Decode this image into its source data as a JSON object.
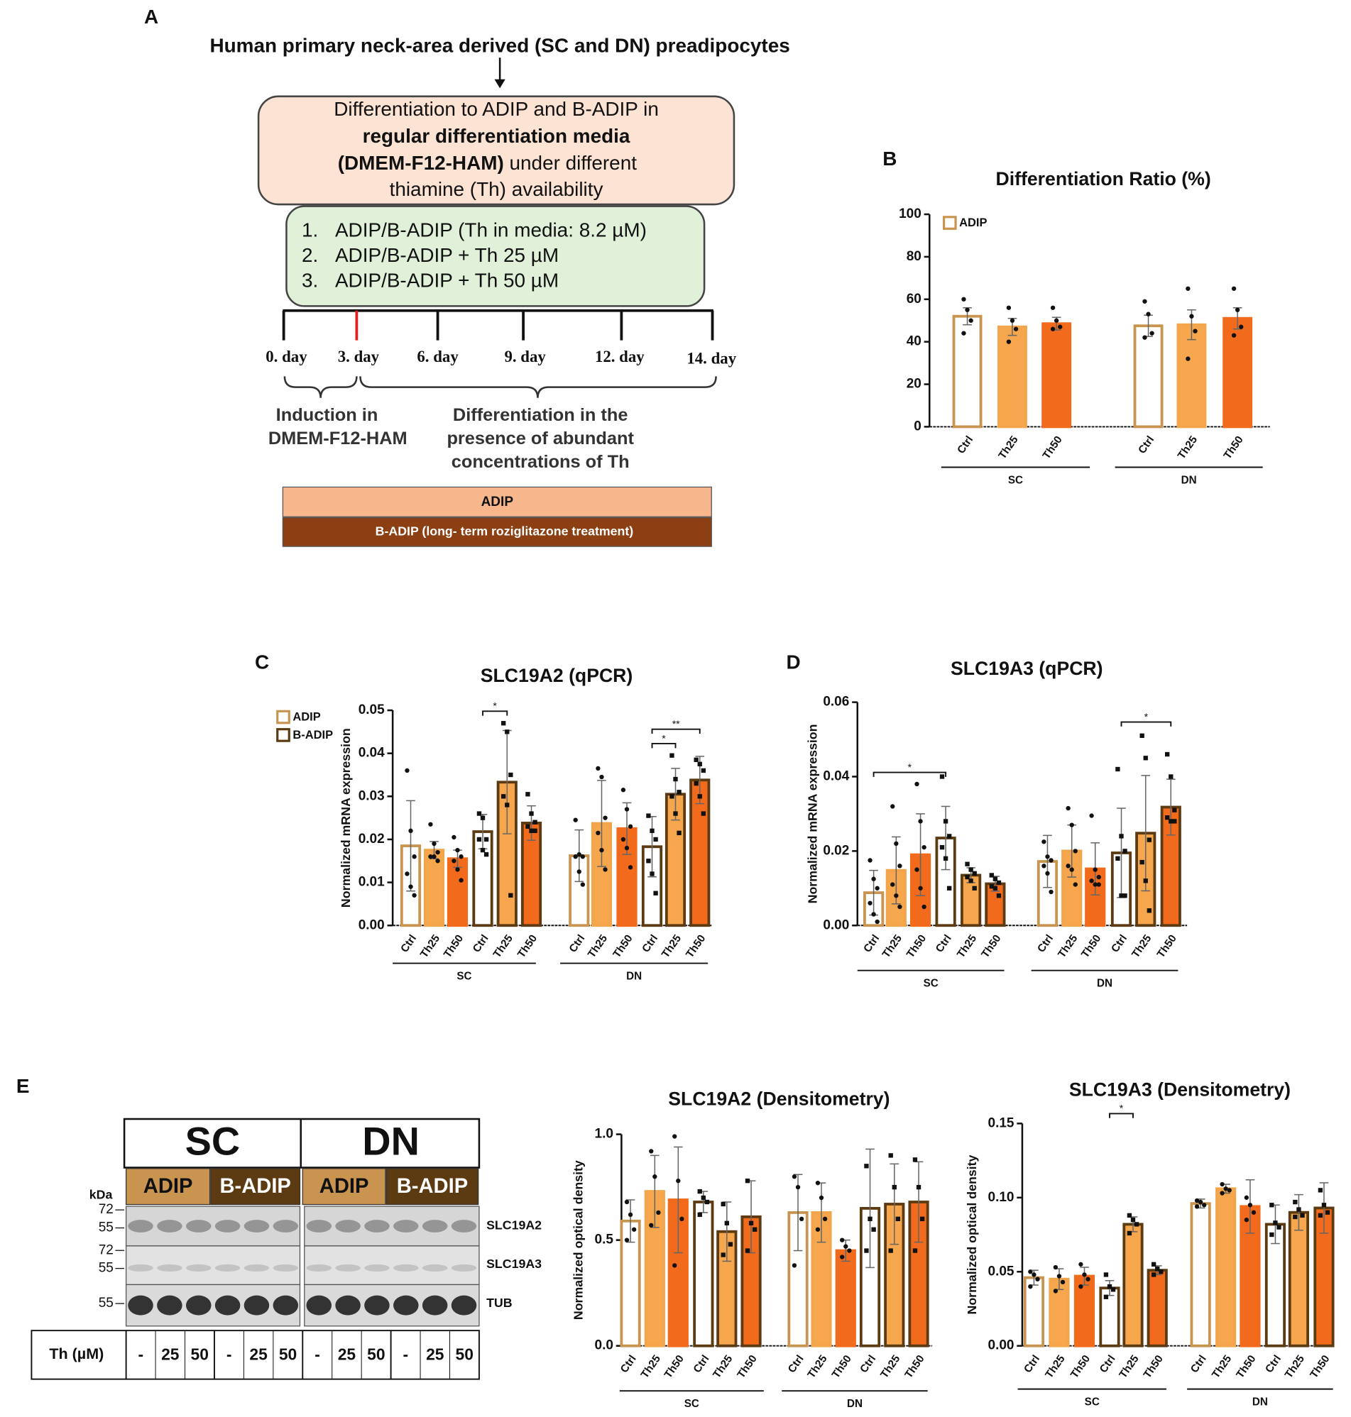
{
  "diagram": {
    "panel": "A",
    "title": "Human primary neck-area derived (SC and DN) preadipocytes",
    "box1": [
      [
        "Differentiation to ADIP and B-ADIP in"
      ],
      [
        "regular differentiation media"
      ],
      [
        "(DMEM-F12-HAM)",
        " under different"
      ],
      [
        "thiamine (Th) availability"
      ]
    ],
    "steps": [
      {
        "number": "1.",
        "text": "ADIP/B-ADIP (Th in media: 8.2 µM)"
      },
      {
        "number": "2.",
        "text": "ADIP/B-ADIP + Th 25 µM"
      },
      {
        "number": "3.",
        "text": "ADIP/B-ADIP + Th 50 µM"
      }
    ],
    "days": [
      "0. day",
      "3. day",
      "6. day",
      "9. day",
      "12. day",
      "14. day"
    ],
    "induction": [
      "Induction in",
      "DMEM-F12-HAM"
    ],
    "differentiation": [
      "Differentiation in the",
      "presence of abundant",
      "concentrations of Th"
    ],
    "bars": [
      "ADIP",
      "B-ADIP (long- term roziglitazone treatment)"
    ]
  },
  "blot": {
    "panel": "E",
    "groups": [
      "SC",
      "DN"
    ],
    "subgroups": [
      "ADIP",
      "B-ADIP",
      "ADIP",
      "B-ADIP"
    ],
    "kda_title": "kDa",
    "markers": [
      72,
      55,
      72,
      55,
      55
    ],
    "bands": [
      "SLC19A2",
      "SLC19A3",
      "TUB"
    ],
    "th_label": "Th (µM)",
    "lanes": [
      "-",
      25,
      50,
      "-",
      25,
      50,
      "-",
      25,
      50,
      "-",
      25,
      50
    ]
  },
  "chart_data": [
    {
      "type": "bar",
      "panel": "B",
      "title": "Differentiation Ratio (%)",
      "categories": [
        "Ctrl",
        "Th25",
        "Th50",
        "Ctrl",
        "Th25",
        "Th50"
      ],
      "groups": [
        "SC",
        "DN"
      ],
      "values": [
        52,
        47,
        48.5,
        47.5,
        48,
        51
      ],
      "errors": [
        4,
        4,
        3,
        5,
        7,
        5
      ],
      "points": [
        [
          60,
          55,
          50,
          44
        ],
        [
          56,
          50,
          46,
          40
        ],
        [
          56,
          50,
          47,
          46
        ],
        [
          59,
          53,
          44,
          42
        ],
        [
          65,
          52,
          45,
          32
        ],
        [
          65,
          55,
          47,
          43
        ]
      ],
      "point_shapes": [
        "circle",
        "circle",
        "circle",
        "circle",
        "circle",
        "circle"
      ],
      "colors": [
        "#c8944f",
        "#f2a54a",
        "#f26a1b",
        "#c8944f",
        "#f2a54a",
        "#f26a1b"
      ],
      "fills": [
        "#ffffff",
        "#f6a64c",
        "#f26a1b",
        "#ffffff",
        "#f6a64c",
        "#f26a1b"
      ],
      "legend": [
        {
          "name": "ADIP",
          "color": "#c8944f"
        }
      ],
      "ylim": [
        0,
        100
      ],
      "yticks": [
        0,
        20,
        40,
        60,
        80,
        100
      ],
      "significance": []
    },
    {
      "type": "bar",
      "panel": "C",
      "title": "SLC19A2 (qPCR)",
      "ylabel": "Normalized mRNA expression",
      "categories": [
        "Ctrl",
        "Th25",
        "Th50",
        "Ctrl",
        "Th25",
        "Th50",
        "Ctrl",
        "Th25",
        "Th50",
        "Ctrl",
        "Th25",
        "Th50"
      ],
      "groups": [
        "SC",
        "DN"
      ],
      "values": [
        0.0185,
        0.0175,
        0.0155,
        0.0218,
        0.0333,
        0.0238,
        0.0162,
        0.0237,
        0.0225,
        0.0183,
        0.0305,
        0.0338
      ],
      "errors": [
        0.0105,
        0.002,
        0.002,
        0.004,
        0.012,
        0.004,
        0.006,
        0.01,
        0.006,
        0.007,
        0.006,
        0.0055
      ],
      "points": [
        [
          0.036,
          0.022,
          0.016,
          0.012,
          0.009,
          0.007
        ],
        [
          0.0235,
          0.019,
          0.017,
          0.016,
          0.016,
          0.015
        ],
        [
          0.0205,
          0.0175,
          0.016,
          0.015,
          0.013,
          0.0105
        ],
        [
          0.026,
          0.025,
          0.02,
          0.02,
          0.0175,
          0.0165
        ],
        [
          0.047,
          0.045,
          0.035,
          0.03,
          0.028,
          0.007
        ],
        [
          0.0305,
          0.026,
          0.024,
          0.023,
          0.022,
          0.022
        ],
        [
          0.0245,
          0.0165,
          0.016,
          0.016,
          0.0125,
          0.0095
        ],
        [
          0.0365,
          0.0345,
          0.025,
          0.0215,
          0.0175,
          0.013
        ],
        [
          0.0315,
          0.027,
          0.023,
          0.02,
          0.018,
          0.0135
        ],
        [
          0.0255,
          0.022,
          0.02,
          0.015,
          0.012,
          0.0075
        ],
        [
          0.0395,
          0.034,
          0.031,
          0.03,
          0.026,
          0.0215
        ],
        [
          0.0385,
          0.0375,
          0.036,
          0.033,
          0.03,
          0.026
        ]
      ],
      "point_shapes": [
        "circle",
        "circle",
        "circle",
        "square",
        "square",
        "square",
        "circle",
        "circle",
        "circle",
        "square",
        "square",
        "square"
      ],
      "colors": [
        "#c8944f",
        "#f2a54a",
        "#f26a1b",
        "#5c3b12",
        "#5c3b12",
        "#5c3b12",
        "#c8944f",
        "#f2a54a",
        "#f26a1b",
        "#5c3b12",
        "#5c3b12",
        "#5c3b12"
      ],
      "fills": [
        "#ffffff",
        "#f6a64c",
        "#f26a1b",
        "#ffffff",
        "#f6a64c",
        "#f26a1b",
        "#ffffff",
        "#f6a64c",
        "#f26a1b",
        "#ffffff",
        "#f6a64c",
        "#f26a1b"
      ],
      "legend": [
        {
          "name": "ADIP",
          "color": "#c8944f"
        },
        {
          "name": "B-ADIP",
          "color": "#5c3b12"
        }
      ],
      "ylim": [
        0,
        0.05
      ],
      "yticks": [
        {
          "value": 0,
          "label": "0.00"
        },
        0.01,
        0.02,
        0.03,
        0.04,
        0.05
      ],
      "significance": [
        {
          "bars": [
            3,
            4
          ],
          "label": "*"
        },
        {
          "bars": [
            9,
            10
          ],
          "label": "*"
        },
        {
          "bars": [
            9,
            11
          ],
          "label": "**"
        }
      ]
    },
    {
      "type": "bar",
      "panel": "D",
      "title": "SLC19A3 (qPCR)",
      "ylabel": "Normalized mRNA expression",
      "categories": [
        "Ctrl",
        "Th25",
        "Th50",
        "Ctrl",
        "Th25",
        "Th50",
        "Ctrl",
        "Th25",
        "Th50",
        "Ctrl",
        "Th25",
        "Th50"
      ],
      "groups": [
        "SC",
        "DN"
      ],
      "values": [
        0.0088,
        0.0148,
        0.019,
        0.0235,
        0.0135,
        0.0112,
        0.0172,
        0.02,
        0.0152,
        0.0195,
        0.0248,
        0.0318
      ],
      "errors": [
        0.006,
        0.009,
        0.011,
        0.0085,
        0.002,
        0.002,
        0.007,
        0.007,
        0.007,
        0.012,
        0.0155,
        0.0075
      ],
      "points": [
        [
          0.0175,
          0.0125,
          0.01,
          0.006,
          0.003,
          0.001
        ],
        [
          0.032,
          0.022,
          0.016,
          0.011,
          0.008,
          0.005
        ],
        [
          0.038,
          0.028,
          0.021,
          0.015,
          0.01,
          0.005
        ],
        [
          0.04,
          0.028,
          0.024,
          0.021,
          0.018,
          0.01
        ],
        [
          0.0165,
          0.015,
          0.014,
          0.013,
          0.012,
          0.01
        ],
        [
          0.0135,
          0.0125,
          0.0115,
          0.0105,
          0.01,
          0.008
        ],
        [
          0.0225,
          0.0185,
          0.0175,
          0.016,
          0.014,
          0.009
        ],
        [
          0.0315,
          0.027,
          0.02,
          0.016,
          0.015,
          0.011
        ],
        [
          0.0295,
          0.015,
          0.013,
          0.012,
          0.011,
          0.011
        ],
        [
          0.042,
          0.024,
          0.02,
          0.018,
          0.008,
          0.008
        ],
        [
          0.051,
          0.045,
          0.023,
          0.017,
          0.012,
          0.004
        ],
        [
          0.046,
          0.04,
          0.031,
          0.029,
          0.028,
          0.028
        ]
      ],
      "point_shapes": [
        "circle",
        "circle",
        "circle",
        "square",
        "square",
        "square",
        "circle",
        "circle",
        "circle",
        "square",
        "square",
        "square"
      ],
      "colors": [
        "#c8944f",
        "#f2a54a",
        "#f26a1b",
        "#5c3b12",
        "#5c3b12",
        "#5c3b12",
        "#c8944f",
        "#f2a54a",
        "#f26a1b",
        "#5c3b12",
        "#5c3b12",
        "#5c3b12"
      ],
      "fills": [
        "#ffffff",
        "#f6a64c",
        "#f26a1b",
        "#ffffff",
        "#f6a64c",
        "#f26a1b",
        "#ffffff",
        "#f6a64c",
        "#f26a1b",
        "#ffffff",
        "#f6a64c",
        "#f26a1b"
      ],
      "ylim": [
        0,
        0.06
      ],
      "yticks": [
        {
          "value": 0,
          "label": "0.00"
        },
        0.02,
        0.04,
        0.06
      ],
      "significance": [
        {
          "bars": [
            0,
            3
          ],
          "label": "*"
        },
        {
          "bars": [
            9,
            11
          ],
          "label": "*"
        }
      ]
    },
    {
      "type": "bar",
      "title": "SLC19A2 (Densitometry)",
      "ylabel": "Normalized optical density",
      "categories": [
        "Ctrl",
        "Th25",
        "Th50",
        "Ctrl",
        "Th25",
        "Th50",
        "Ctrl",
        "Th25",
        "Th50",
        "Ctrl",
        "Th25",
        "Th50"
      ],
      "groups": [
        "SC",
        "DN"
      ],
      "values": [
        0.59,
        0.73,
        0.69,
        0.68,
        0.54,
        0.61,
        0.63,
        0.63,
        0.45,
        0.65,
        0.67,
        0.68
      ],
      "errors": [
        0.1,
        0.17,
        0.25,
        0.05,
        0.14,
        0.17,
        0.18,
        0.14,
        0.05,
        0.28,
        0.19,
        0.19
      ],
      "points": [
        [
          0.68,
          0.62,
          0.55,
          0.5
        ],
        [
          0.92,
          0.8,
          0.63,
          0.57
        ],
        [
          0.99,
          0.78,
          0.6,
          0.38
        ],
        [
          0.73,
          0.7,
          0.68,
          0.62
        ],
        [
          0.67,
          0.58,
          0.48,
          0.43
        ],
        [
          0.78,
          0.58,
          0.55,
          0.45
        ],
        [
          0.8,
          0.75,
          0.6,
          0.38
        ],
        [
          0.77,
          0.7,
          0.6,
          0.55
        ],
        [
          0.5,
          0.47,
          0.45,
          0.42
        ],
        [
          0.85,
          0.6,
          0.55,
          0.45
        ],
        [
          0.9,
          0.75,
          0.6,
          0.45
        ],
        [
          0.88,
          0.75,
          0.6,
          0.45
        ]
      ],
      "point_shapes": [
        "circle",
        "circle",
        "circle",
        "square",
        "square",
        "square",
        "circle",
        "circle",
        "circle",
        "square",
        "square",
        "square"
      ],
      "colors": [
        "#c8944f",
        "#f2a54a",
        "#f26a1b",
        "#5c3b12",
        "#5c3b12",
        "#5c3b12",
        "#c8944f",
        "#f2a54a",
        "#f26a1b",
        "#5c3b12",
        "#5c3b12",
        "#5c3b12"
      ],
      "fills": [
        "#ffffff",
        "#f6a64c",
        "#f26a1b",
        "#ffffff",
        "#f6a64c",
        "#f26a1b",
        "#ffffff",
        "#f6a64c",
        "#f26a1b",
        "#ffffff",
        "#f6a64c",
        "#f26a1b"
      ],
      "ylim": [
        0,
        1
      ],
      "yticks": [
        {
          "value": 0,
          "label": "0.0"
        },
        0.5,
        {
          "value": 1,
          "label": "1.0"
        }
      ],
      "significance": []
    },
    {
      "type": "bar",
      "title": "SLC19A3 (Densitometry)",
      "ylabel": "Normalized optical density",
      "categories": [
        "Ctrl",
        "Th25",
        "Th50",
        "Ctrl",
        "Th25",
        "Th50",
        "Ctrl",
        "Th25",
        "Th50",
        "Ctrl",
        "Th25",
        "Th50"
      ],
      "groups": [
        "SC",
        "DN"
      ],
      "values": [
        0.046,
        0.045,
        0.047,
        0.039,
        0.082,
        0.051,
        0.096,
        0.106,
        0.094,
        0.082,
        0.09,
        0.093
      ],
      "errors": [
        0.005,
        0.007,
        0.006,
        0.005,
        0.005,
        0.003,
        0.003,
        0.003,
        0.018,
        0.013,
        0.012,
        0.017
      ],
      "points": [
        [
          0.05,
          0.048,
          0.045,
          0.04
        ],
        [
          0.053,
          0.047,
          0.043,
          0.037
        ],
        [
          0.055,
          0.048,
          0.045,
          0.04
        ],
        [
          0.048,
          0.04,
          0.038,
          0.033
        ],
        [
          0.088,
          0.085,
          0.082,
          0.076
        ],
        [
          0.055,
          0.052,
          0.05,
          0.048
        ],
        [
          0.098,
          0.097,
          0.095,
          0.094
        ],
        [
          0.109,
          0.106,
          0.105,
          0.103
        ],
        [
          0.1,
          0.095,
          0.09,
          0.085
        ],
        [
          0.095,
          0.083,
          0.08,
          0.075
        ],
        [
          0.097,
          0.092,
          0.088,
          0.087
        ],
        [
          0.105,
          0.095,
          0.09,
          0.088
        ]
      ],
      "point_shapes": [
        "circle",
        "circle",
        "circle",
        "square",
        "square",
        "square",
        "circle",
        "circle",
        "circle",
        "square",
        "square",
        "square"
      ],
      "colors": [
        "#c8944f",
        "#f2a54a",
        "#f26a1b",
        "#5c3b12",
        "#5c3b12",
        "#5c3b12",
        "#c8944f",
        "#f2a54a",
        "#f26a1b",
        "#5c3b12",
        "#5c3b12",
        "#5c3b12"
      ],
      "fills": [
        "#ffffff",
        "#f6a64c",
        "#f26a1b",
        "#ffffff",
        "#f6a64c",
        "#f26a1b",
        "#ffffff",
        "#f6a64c",
        "#f26a1b",
        "#ffffff",
        "#f6a64c",
        "#f26a1b"
      ],
      "ylim": [
        0,
        0.15
      ],
      "yticks": [
        {
          "value": 0,
          "label": "0.00"
        },
        0.05,
        {
          "value": 0.1,
          "label": "0.10"
        },
        0.15
      ],
      "significance": [
        {
          "bars": [
            3,
            4
          ],
          "label": "*"
        }
      ]
    }
  ]
}
